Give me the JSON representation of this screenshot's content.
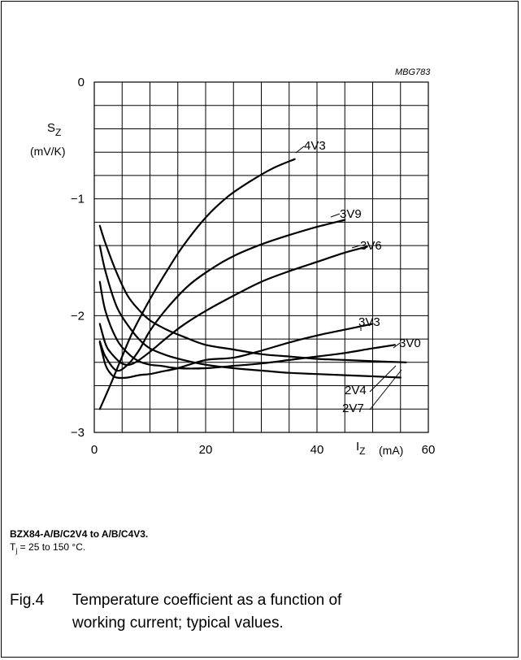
{
  "figure": {
    "code": "MBG783",
    "device": "BZX84-A/B/C2V4 to A/B/C4V3.",
    "condition_prefix": "T",
    "condition_sub": "j",
    "condition_rest": " = 25 to 150 °C.",
    "fig_number": "Fig.4",
    "caption_line1": "Temperature coefficient as a function of",
    "caption_line2": "working current; typical values."
  },
  "chart_data": {
    "type": "line",
    "ylabel_symbol": "S",
    "ylabel_sub": "Z",
    "ylabel_unit": "(mV/K)",
    "xlabel_symbol": "I",
    "xlabel_sub": "Z",
    "xlabel_unit": "(mA)",
    "xlim": [
      0,
      60
    ],
    "ylim": [
      -3,
      0
    ],
    "x_ticks": [
      0,
      20,
      40,
      60
    ],
    "x_tick_labels": [
      "0",
      "20",
      "40",
      "60"
    ],
    "y_ticks": [
      0,
      -1,
      -2,
      -3
    ],
    "y_tick_labels": [
      "0",
      "−1",
      "−2",
      "−3"
    ],
    "grid": true,
    "series": [
      {
        "name": "4V3",
        "x": [
          1,
          3,
          5,
          7,
          10,
          13,
          16,
          20,
          24,
          28,
          32,
          36
        ],
        "y": [
          -2.8,
          -2.58,
          -2.35,
          -2.13,
          -1.86,
          -1.62,
          -1.4,
          -1.16,
          -0.98,
          -0.85,
          -0.74,
          -0.66
        ]
      },
      {
        "name": "3V9",
        "x": [
          1,
          2,
          4,
          6,
          8,
          10,
          13,
          17,
          21,
          25,
          30,
          35,
          40,
          45
        ],
        "y": [
          -2.22,
          -2.35,
          -2.47,
          -2.42,
          -2.3,
          -2.13,
          -1.94,
          -1.74,
          -1.6,
          -1.49,
          -1.39,
          -1.31,
          -1.24,
          -1.18
        ]
      },
      {
        "name": "3V6",
        "x": [
          1,
          2,
          3,
          5,
          7,
          10,
          13,
          16,
          20,
          25,
          30,
          35,
          40,
          45,
          49
        ],
        "y": [
          -2.07,
          -2.24,
          -2.32,
          -2.41,
          -2.41,
          -2.31,
          -2.19,
          -2.08,
          -1.96,
          -1.83,
          -1.71,
          -1.62,
          -1.54,
          -1.46,
          -1.41
        ]
      },
      {
        "name": "3V3",
        "x": [
          1,
          2,
          3,
          4,
          6,
          8,
          10,
          12,
          15,
          20,
          25,
          30,
          35,
          40,
          45,
          50
        ],
        "y": [
          -2.23,
          -2.42,
          -2.5,
          -2.53,
          -2.53,
          -2.51,
          -2.5,
          -2.48,
          -2.45,
          -2.38,
          -2.36,
          -2.3,
          -2.23,
          -2.17,
          -2.12,
          -2.07
        ]
      },
      {
        "name": "3V0",
        "x": [
          1,
          2,
          4,
          6,
          8,
          10,
          12,
          15,
          20,
          25,
          30,
          35,
          40,
          45,
          50,
          54
        ],
        "y": [
          -1.71,
          -1.96,
          -2.2,
          -2.32,
          -2.39,
          -2.42,
          -2.43,
          -2.45,
          -2.45,
          -2.43,
          -2.41,
          -2.38,
          -2.35,
          -2.32,
          -2.28,
          -2.25
        ]
      },
      {
        "name": "2V4",
        "x": [
          1,
          2,
          4,
          6,
          8,
          10,
          13,
          16,
          20,
          25,
          30,
          35,
          40,
          45,
          50,
          56
        ],
        "y": [
          -1.23,
          -1.38,
          -1.63,
          -1.83,
          -1.95,
          -2.04,
          -2.12,
          -2.18,
          -2.25,
          -2.29,
          -2.33,
          -2.35,
          -2.37,
          -2.38,
          -2.39,
          -2.4
        ]
      },
      {
        "name": "2V7",
        "x": [
          1,
          2,
          4,
          6,
          8,
          10,
          13,
          16,
          20,
          25,
          30,
          35,
          40,
          45,
          50,
          55
        ],
        "y": [
          -1.4,
          -1.62,
          -1.92,
          -2.08,
          -2.2,
          -2.28,
          -2.34,
          -2.38,
          -2.42,
          -2.45,
          -2.47,
          -2.49,
          -2.5,
          -2.51,
          -2.52,
          -2.53
        ]
      }
    ],
    "annotations": [
      "4V3",
      "3V9",
      "3V6",
      "3V3",
      "3V0",
      "2V4",
      "2V7"
    ]
  }
}
